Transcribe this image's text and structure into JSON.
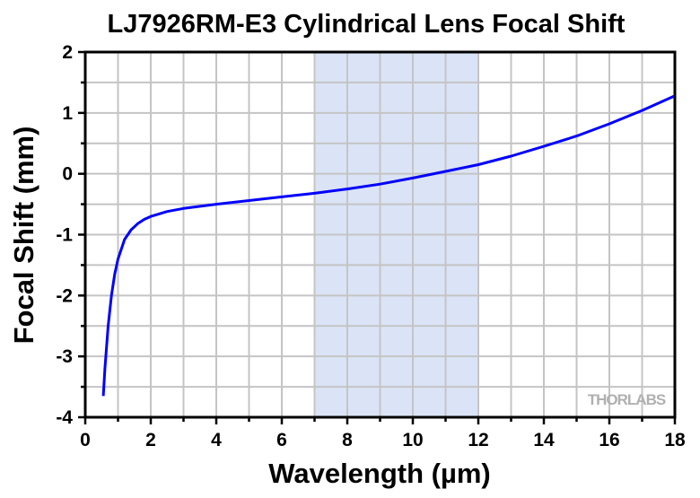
{
  "chart_data": {
    "type": "line",
    "title": "LJ7926RM-E3 Cylindrical Lens Focal Shift",
    "xlabel": "Wavelength (µm)",
    "ylabel": "Focal Shift (mm)",
    "xlim": [
      0,
      18
    ],
    "ylim": [
      -4,
      2
    ],
    "xticks": [
      0,
      2,
      4,
      6,
      8,
      10,
      12,
      14,
      16,
      18
    ],
    "yticks": [
      -4,
      -3,
      -2,
      -1,
      0,
      1,
      2
    ],
    "grid": true,
    "shaded_region": {
      "x": [
        7,
        12
      ],
      "color": "#dbe4f6"
    },
    "series": [
      {
        "name": "Focal Shift",
        "color": "#0000ff",
        "points": [
          [
            0.55,
            -3.65
          ],
          [
            0.6,
            -3.2
          ],
          [
            0.7,
            -2.5
          ],
          [
            0.8,
            -2.0
          ],
          [
            0.9,
            -1.65
          ],
          [
            1.0,
            -1.4
          ],
          [
            1.2,
            -1.08
          ],
          [
            1.4,
            -0.92
          ],
          [
            1.6,
            -0.82
          ],
          [
            1.8,
            -0.75
          ],
          [
            2,
            -0.7
          ],
          [
            2.5,
            -0.62
          ],
          [
            3,
            -0.57
          ],
          [
            4,
            -0.5
          ],
          [
            5,
            -0.44
          ],
          [
            6,
            -0.38
          ],
          [
            7,
            -0.32
          ],
          [
            8,
            -0.25
          ],
          [
            9,
            -0.17
          ],
          [
            10,
            -0.07
          ],
          [
            11,
            0.04
          ],
          [
            12,
            0.15
          ],
          [
            13,
            0.29
          ],
          [
            14,
            0.45
          ],
          [
            15,
            0.62
          ],
          [
            16,
            0.82
          ],
          [
            17,
            1.04
          ],
          [
            18,
            1.28
          ]
        ]
      }
    ],
    "watermark": "THORLABS"
  }
}
